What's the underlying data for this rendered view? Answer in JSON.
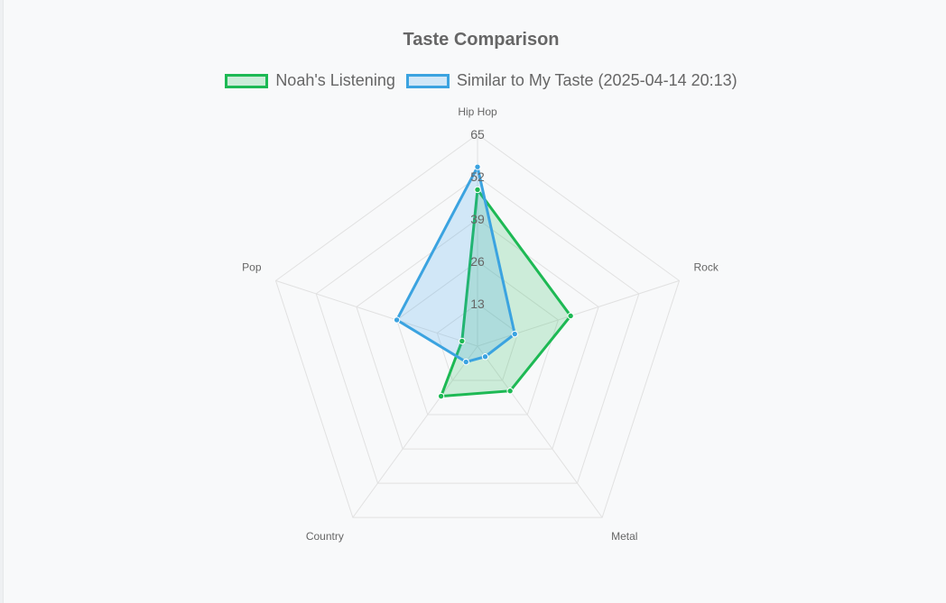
{
  "chart_data": {
    "type": "radar",
    "title": "Taste Comparison",
    "categories": [
      "Hip Hop",
      "Rock",
      "Metal",
      "Country",
      "Pop"
    ],
    "r_ticks": [
      13,
      26,
      39,
      52,
      65
    ],
    "r_range": [
      0,
      65
    ],
    "grid": true,
    "legend_position": "top",
    "series": [
      {
        "name": "Noah's Listening",
        "values": [
          48,
          30,
          17,
          19,
          5
        ],
        "color": "#1db954",
        "fill": "rgba(29,185,84,0.2)"
      },
      {
        "name": "Similar to My Taste (2025-04-14 20:13)",
        "values": [
          55,
          12,
          4,
          6,
          26
        ],
        "color": "#3ba3e0",
        "fill": "rgba(54,162,235,0.2)"
      }
    ]
  }
}
